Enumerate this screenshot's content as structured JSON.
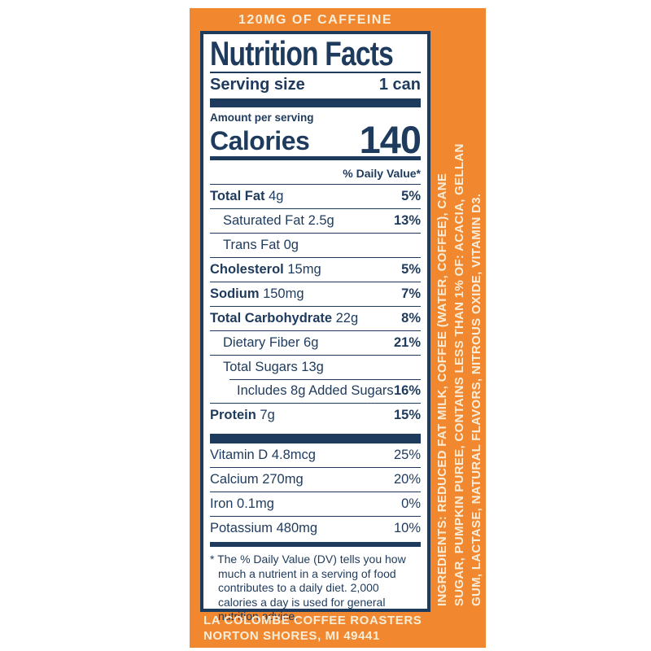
{
  "theme": {
    "orange": "#F1882F",
    "navy": "#1E3A5C",
    "cream": "#F8EDD8",
    "white": "#FFFFFF"
  },
  "banner": {
    "caffeine": "120MG OF CAFFEINE"
  },
  "label": {
    "title": "Nutrition Facts",
    "serving_size_label": "Serving size",
    "serving_size_value": "1 can",
    "amount_per_serving": "Amount per serving",
    "calories_label": "Calories",
    "calories_value": "140",
    "daily_value_header": "% Daily Value*",
    "nutrient_rows": [
      {
        "name": "Total Fat",
        "amount": "4g",
        "dv": "5%",
        "name_bold": true,
        "dv_bold": true,
        "indent": 0
      },
      {
        "name": "Saturated Fat",
        "amount": "2.5g",
        "dv": "13%",
        "name_bold": false,
        "dv_bold": true,
        "indent": 1
      },
      {
        "name": "Trans Fat",
        "amount": "0g",
        "dv": "",
        "name_bold": false,
        "dv_bold": false,
        "indent": 1
      },
      {
        "name": "Cholesterol",
        "amount": "15mg",
        "dv": "5%",
        "name_bold": true,
        "dv_bold": true,
        "indent": 0
      },
      {
        "name": "Sodium",
        "amount": "150mg",
        "dv": "7%",
        "name_bold": true,
        "dv_bold": true,
        "indent": 0
      },
      {
        "name": "Total Carbohydrate",
        "amount": "22g",
        "dv": "8%",
        "name_bold": true,
        "dv_bold": true,
        "indent": 0
      },
      {
        "name": "Dietary Fiber",
        "amount": "6g",
        "dv": "21%",
        "name_bold": false,
        "dv_bold": true,
        "indent": 1
      },
      {
        "name": "Total Sugars",
        "amount": "13g",
        "dv": "",
        "name_bold": false,
        "dv_bold": false,
        "indent": 1
      },
      {
        "name": "Includes 8g Added Sugars",
        "amount": "",
        "dv": "16%",
        "name_bold": false,
        "dv_bold": true,
        "indent": 2,
        "sep_indent": true
      },
      {
        "name": "Protein",
        "amount": "7g",
        "dv": "15%",
        "name_bold": true,
        "dv_bold": true,
        "indent": 0
      }
    ],
    "vitamin_rows": [
      {
        "name": "Vitamin D",
        "amount": "4.8mcg",
        "dv": "25%",
        "name_bold": false,
        "dv_bold": false,
        "indent": 0
      },
      {
        "name": "Calcium",
        "amount": "270mg",
        "dv": "20%",
        "name_bold": false,
        "dv_bold": false,
        "indent": 0
      },
      {
        "name": "Iron",
        "amount": "0.1mg",
        "dv": "0%",
        "name_bold": false,
        "dv_bold": false,
        "indent": 0
      },
      {
        "name": "Potassium",
        "amount": "480mg",
        "dv": "10%",
        "name_bold": false,
        "dv_bold": false,
        "indent": 0
      }
    ],
    "footnote": "* The % Daily Value (DV) tells you how much a nutrient in a serving of food contributes to a daily diet. 2,000 calories a day is used for general nutrition advice."
  },
  "footer": {
    "line1": "LA COLOMBE COFFEE ROASTERS",
    "line2": "NORTON SHORES, MI 49441"
  },
  "ingredients": {
    "lines": [
      "INGREDIENTS: REDUCED FAT MILK, COFFEE (WATER, COFFEE), CANE",
      "SUGAR, PUMPKIN PUREE, CONTAINS LESS THAN 1% OF: ACACIA, GELLAN",
      "GUM, LACTASE, NATURAL FLAVORS, NITROUS OXIDE, VITAMIN D3."
    ]
  }
}
